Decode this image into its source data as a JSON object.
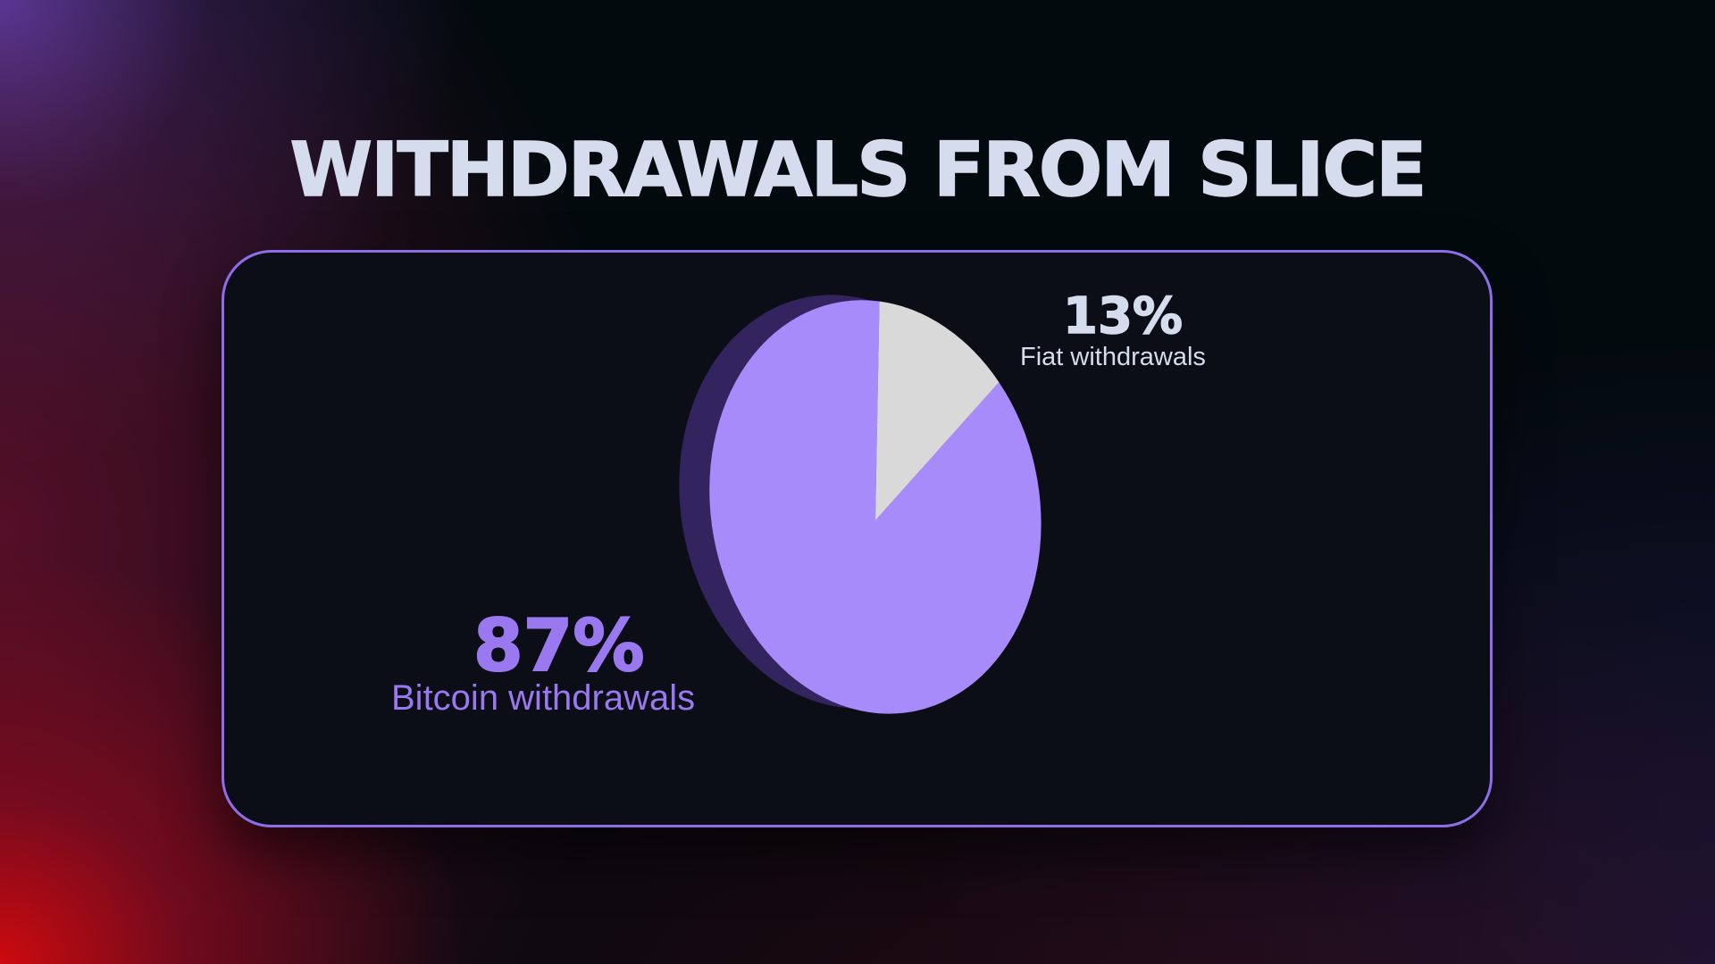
{
  "title": "WITHDRAWALS FROM SLICE",
  "colors": {
    "bitcoin": "#a78bfa",
    "fiat": "#d9d9d9",
    "pie_side": "#33235f",
    "accent_border": "#8e6ee8",
    "title_text": "#d4dced",
    "bitcoin_label": "#9a78f0"
  },
  "chart_data": {
    "type": "pie",
    "title": "WITHDRAWALS FROM SLICE",
    "slices": [
      {
        "label": "Bitcoin withdrawals",
        "value": 87,
        "display": "87%",
        "color": "#a78bfa"
      },
      {
        "label": "Fiat withdrawals",
        "value": 13,
        "display": "13%",
        "color": "#d9d9d9"
      }
    ]
  }
}
